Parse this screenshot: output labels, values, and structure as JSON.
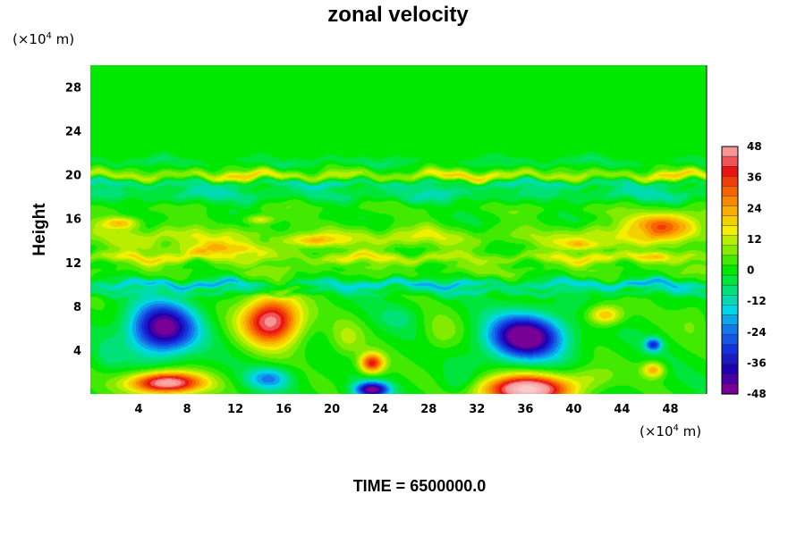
{
  "chart_data": {
    "type": "heatmap",
    "title": "zonal velocity",
    "ylabel": "Height",
    "xunit_prefix": "(×10",
    "xunit_exp": "4",
    "xunit_suffix": " m)",
    "yunit_prefix": "(×10",
    "yunit_exp": "4",
    "yunit_suffix": " m)",
    "footer": "TIME = 6500000.0",
    "xlim": [
      0,
      51
    ],
    "ylim": [
      0,
      30
    ],
    "xticks": [
      4,
      8,
      12,
      16,
      20,
      24,
      28,
      32,
      36,
      40,
      44,
      48
    ],
    "yticks": [
      4,
      8,
      12,
      16,
      20,
      24,
      28
    ],
    "colorbar": {
      "min": -48,
      "max": 48,
      "ticks": [
        48,
        36,
        24,
        12,
        0,
        -12,
        -24,
        -36,
        -48
      ]
    },
    "features": [
      {
        "type": "band",
        "y": 19.9,
        "width": 0.45,
        "value": 18
      },
      {
        "type": "band",
        "y": 19.2,
        "width": 0.35,
        "value": -12
      },
      {
        "type": "band",
        "y": 18.2,
        "width": 0.7,
        "value": -10
      },
      {
        "type": "band",
        "y": 17.0,
        "width": 0.6,
        "value": 4
      },
      {
        "type": "band",
        "y": 14.3,
        "width": 0.9,
        "value": 14
      },
      {
        "type": "band",
        "y": 12.4,
        "width": 0.5,
        "value": 16
      },
      {
        "type": "band",
        "y": 11.3,
        "width": 0.5,
        "value": 6
      },
      {
        "type": "band",
        "y": 10.0,
        "width": 0.35,
        "value": -20
      },
      {
        "type": "band",
        "y": 9.3,
        "width": 0.3,
        "value": -10
      },
      {
        "type": "band",
        "y": 21.2,
        "width": 0.35,
        "value": -6
      },
      {
        "type": "blob",
        "x": 2.5,
        "y": 15.6,
        "sx": 1.6,
        "sy": 0.6,
        "value": 22
      },
      {
        "type": "blob",
        "x": 11.0,
        "y": 13.2,
        "sx": 5.0,
        "sy": 0.6,
        "value": 16
      },
      {
        "type": "blob",
        "x": 18.5,
        "y": 14.0,
        "sx": 2.5,
        "sy": 0.5,
        "value": 14
      },
      {
        "type": "blob",
        "x": 14.0,
        "y": 15.9,
        "sx": 1.2,
        "sy": 0.4,
        "value": 16
      },
      {
        "type": "blob",
        "x": 41.0,
        "y": 13.6,
        "sx": 2.0,
        "sy": 0.5,
        "value": 16
      },
      {
        "type": "blob",
        "x": 47.5,
        "y": 15.5,
        "sx": 3.0,
        "sy": 1.1,
        "value": 30
      },
      {
        "type": "blob",
        "x": 46.5,
        "y": 12.6,
        "sx": 1.5,
        "sy": 0.4,
        "value": 14
      },
      {
        "type": "blob",
        "x": 6.0,
        "y": 6.0,
        "sx": 2.7,
        "sy": 2.3,
        "value": -50
      },
      {
        "type": "blob",
        "x": 15.0,
        "y": 6.7,
        "sx": 2.4,
        "sy": 2.2,
        "value": 50
      },
      {
        "type": "blob",
        "x": 6.3,
        "y": 1.0,
        "sx": 3.0,
        "sy": 1.0,
        "value": 55
      },
      {
        "type": "blob",
        "x": 36.0,
        "y": 5.2,
        "sx": 3.0,
        "sy": 2.0,
        "value": -55
      },
      {
        "type": "blob",
        "x": 36.0,
        "y": 0.4,
        "sx": 3.6,
        "sy": 1.3,
        "value": 60
      },
      {
        "type": "blob",
        "x": 23.3,
        "y": 2.8,
        "sx": 1.0,
        "sy": 0.9,
        "value": 40
      },
      {
        "type": "blob",
        "x": 23.3,
        "y": 0.4,
        "sx": 1.4,
        "sy": 0.7,
        "value": -48
      },
      {
        "type": "blob",
        "x": 14.8,
        "y": 1.4,
        "sx": 1.8,
        "sy": 1.0,
        "value": -22
      },
      {
        "type": "blob",
        "x": 25.5,
        "y": 7.0,
        "sx": 1.7,
        "sy": 1.2,
        "value": -6
      },
      {
        "type": "blob",
        "x": 46.6,
        "y": 4.5,
        "sx": 0.7,
        "sy": 0.6,
        "value": -32
      },
      {
        "type": "blob",
        "x": 46.6,
        "y": 2.2,
        "sx": 0.9,
        "sy": 0.7,
        "value": 24
      },
      {
        "type": "blob",
        "x": 42.6,
        "y": 7.2,
        "sx": 1.4,
        "sy": 0.9,
        "value": 24
      },
      {
        "type": "blob",
        "x": 21.2,
        "y": 5.0,
        "sx": 1.4,
        "sy": 1.7,
        "value": 10
      },
      {
        "type": "blob",
        "x": 29.0,
        "y": 5.5,
        "sx": 1.6,
        "sy": 1.8,
        "value": 8
      },
      {
        "type": "blob",
        "x": 30.5,
        "y": 1.0,
        "sx": 1.4,
        "sy": 1.2,
        "value": -8
      },
      {
        "type": "blob",
        "x": 41.5,
        "y": 1.5,
        "sx": 2.0,
        "sy": 1.1,
        "value": 10
      },
      {
        "type": "blob",
        "x": 50.0,
        "y": 7.0,
        "sx": 1.5,
        "sy": 2.0,
        "value": 6
      },
      {
        "type": "blob",
        "x": 1.5,
        "y": 3.5,
        "sx": 1.0,
        "sy": 1.3,
        "value": -6
      }
    ]
  }
}
